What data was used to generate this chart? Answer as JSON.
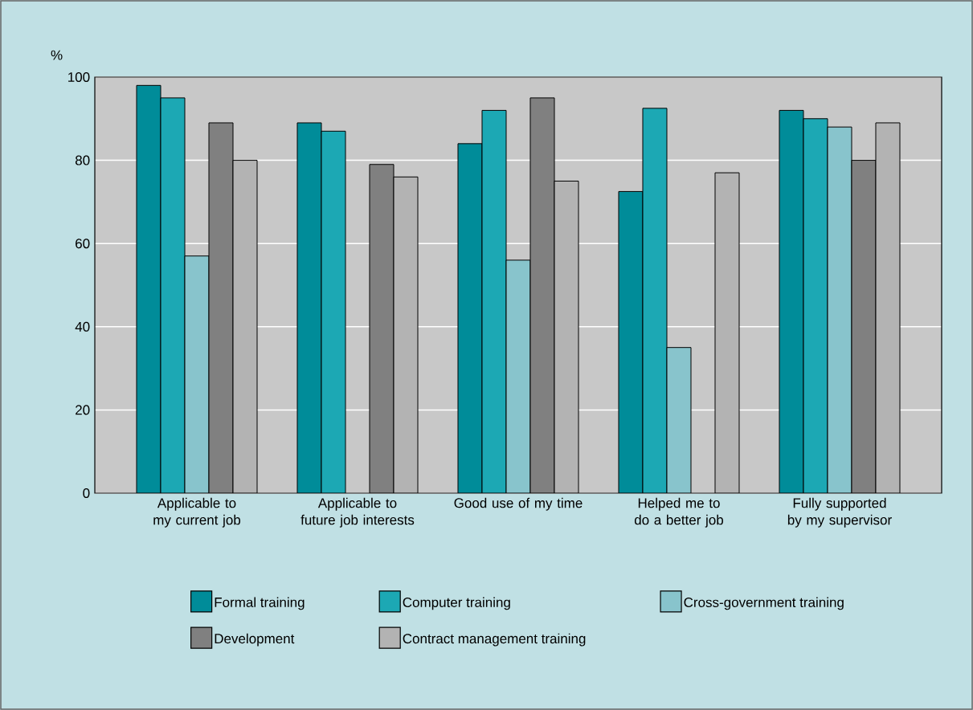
{
  "chart_data": {
    "type": "bar",
    "ylabel": "%",
    "categories": [
      "Applicable to my current job",
      "Applicable to future job interests",
      "Good use of my time",
      "Helped me to do a better job",
      "Fully supported by my supervisor"
    ],
    "series": [
      {
        "name": "Formal training",
        "color": "#008c99",
        "values": [
          98,
          89,
          84,
          72.5,
          92
        ]
      },
      {
        "name": "Computer training",
        "color": "#1ca8b4",
        "values": [
          95,
          87,
          92,
          92.5,
          90
        ]
      },
      {
        "name": "Cross-government training",
        "color": "#88c4cc",
        "values": [
          57,
          null,
          56,
          35,
          88
        ]
      },
      {
        "name": "Development",
        "color": "#808080",
        "values": [
          89,
          79,
          95,
          null,
          80
        ]
      },
      {
        "name": "Contract management training",
        "color": "#b3b3b3",
        "values": [
          80,
          76,
          75,
          77,
          89
        ]
      }
    ],
    "ylim": [
      0,
      100
    ],
    "yticks": [
      0,
      20,
      40,
      60,
      80,
      100
    ],
    "grid": "y",
    "legend": "bottom"
  }
}
